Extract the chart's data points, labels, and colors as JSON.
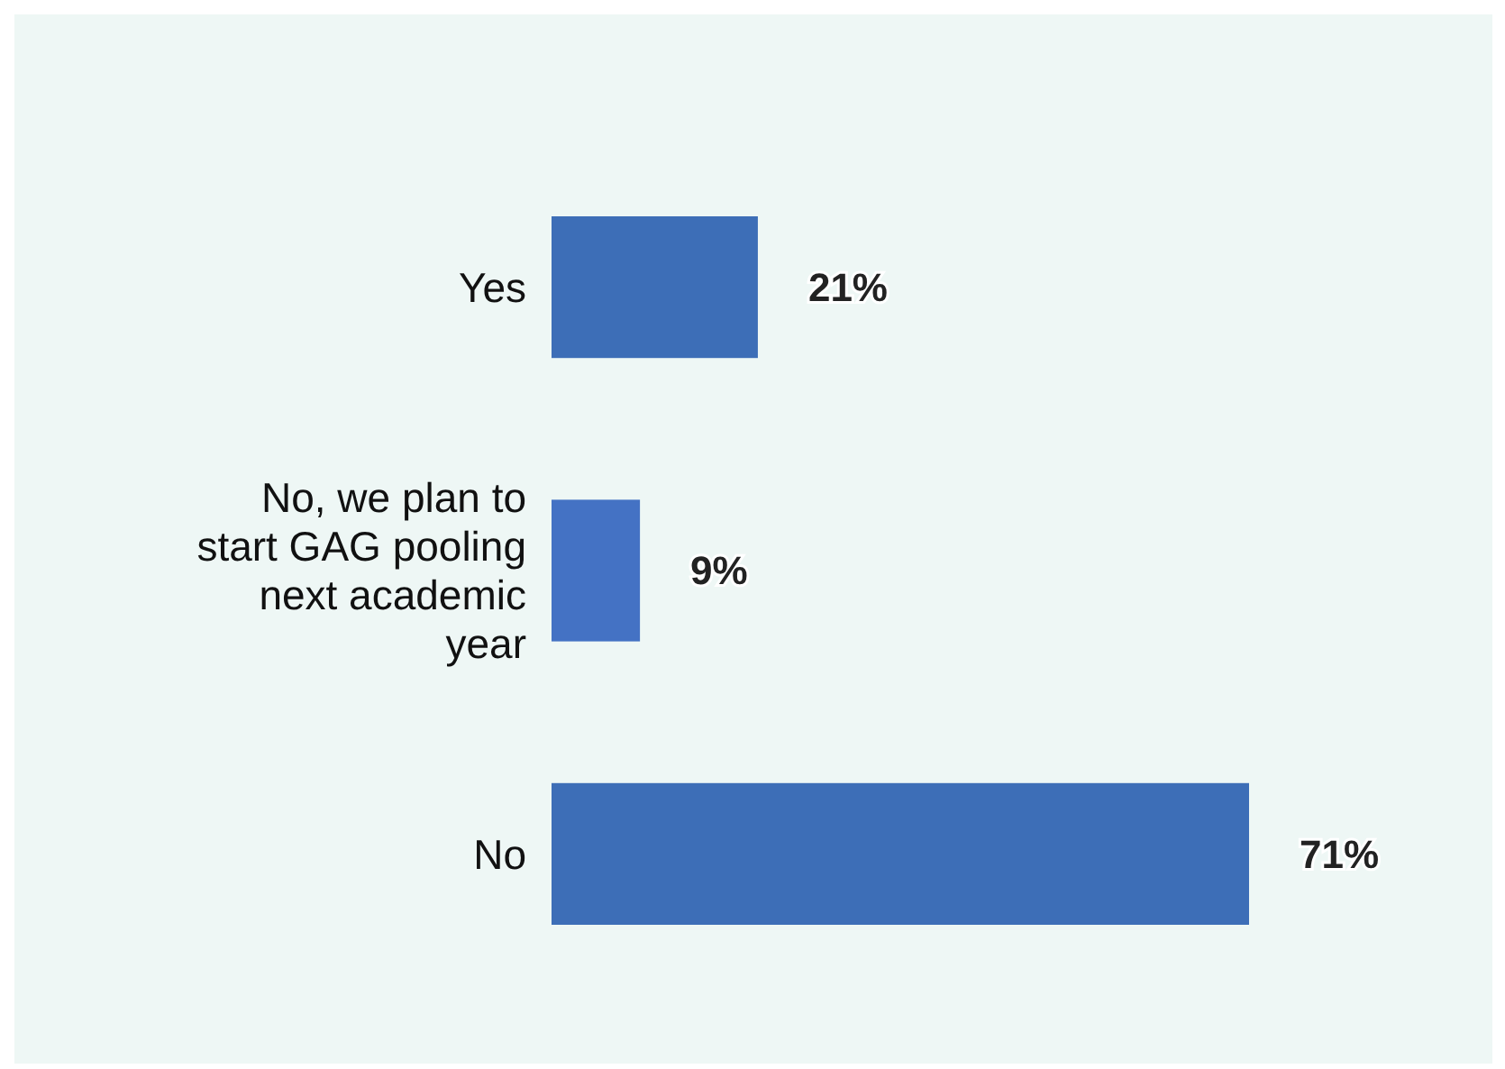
{
  "chart_data": {
    "type": "bar",
    "orientation": "horizontal",
    "categories": [
      "Yes",
      "No, we plan to start GAG pooling next academic year",
      "No"
    ],
    "values": [
      21,
      9,
      71
    ],
    "colors": [
      "#3d6eb7",
      "#4472c4",
      "#3d6eb7"
    ],
    "value_labels": [
      "21%",
      "9%",
      "71%"
    ]
  }
}
